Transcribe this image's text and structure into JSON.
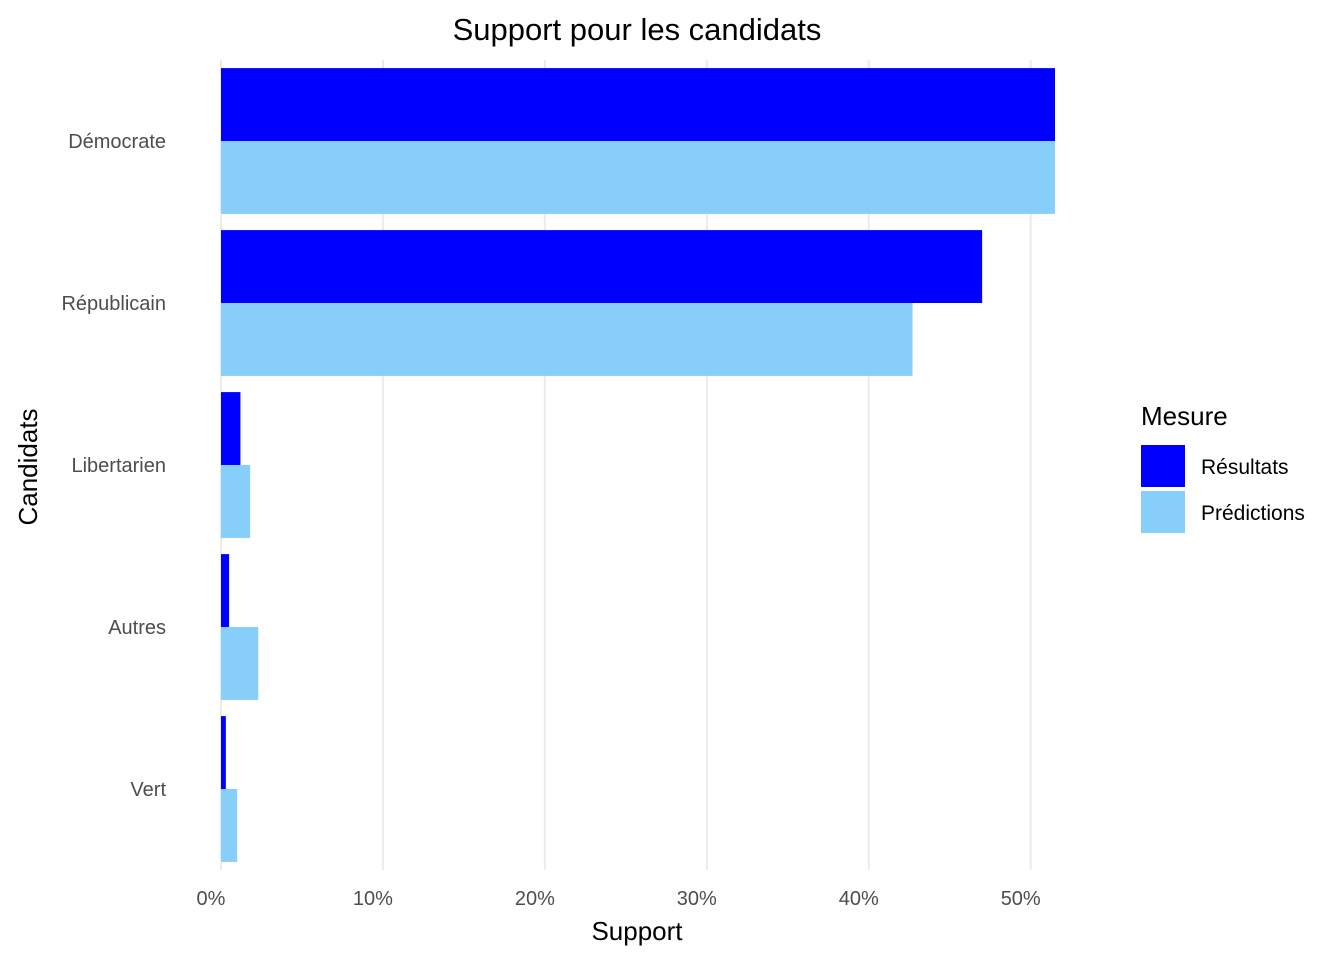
{
  "chart_data": {
    "type": "bar",
    "orientation": "horizontal",
    "title": "Support pour les candidats",
    "xlabel": "Support",
    "ylabel": "Candidats",
    "categories": [
      "Démocrate",
      "Républicain",
      "Libertarien",
      "Autres",
      "Vert"
    ],
    "series": [
      {
        "name": "Résultats",
        "color": "#0000ff",
        "values": [
          51.5,
          47.0,
          1.2,
          0.5,
          0.3
        ]
      },
      {
        "name": "Prédictions",
        "color": "#87cefa",
        "values": [
          51.5,
          42.7,
          1.8,
          2.3,
          1.0
        ]
      }
    ],
    "xlim": [
      0,
      51.5
    ],
    "xticks": [
      0,
      10,
      20,
      30,
      40,
      50
    ],
    "xtick_labels": [
      "0%",
      "10%",
      "20%",
      "30%",
      "40%",
      "50%"
    ],
    "legend": {
      "title": "Mesure",
      "position": "right"
    },
    "grid": true
  }
}
